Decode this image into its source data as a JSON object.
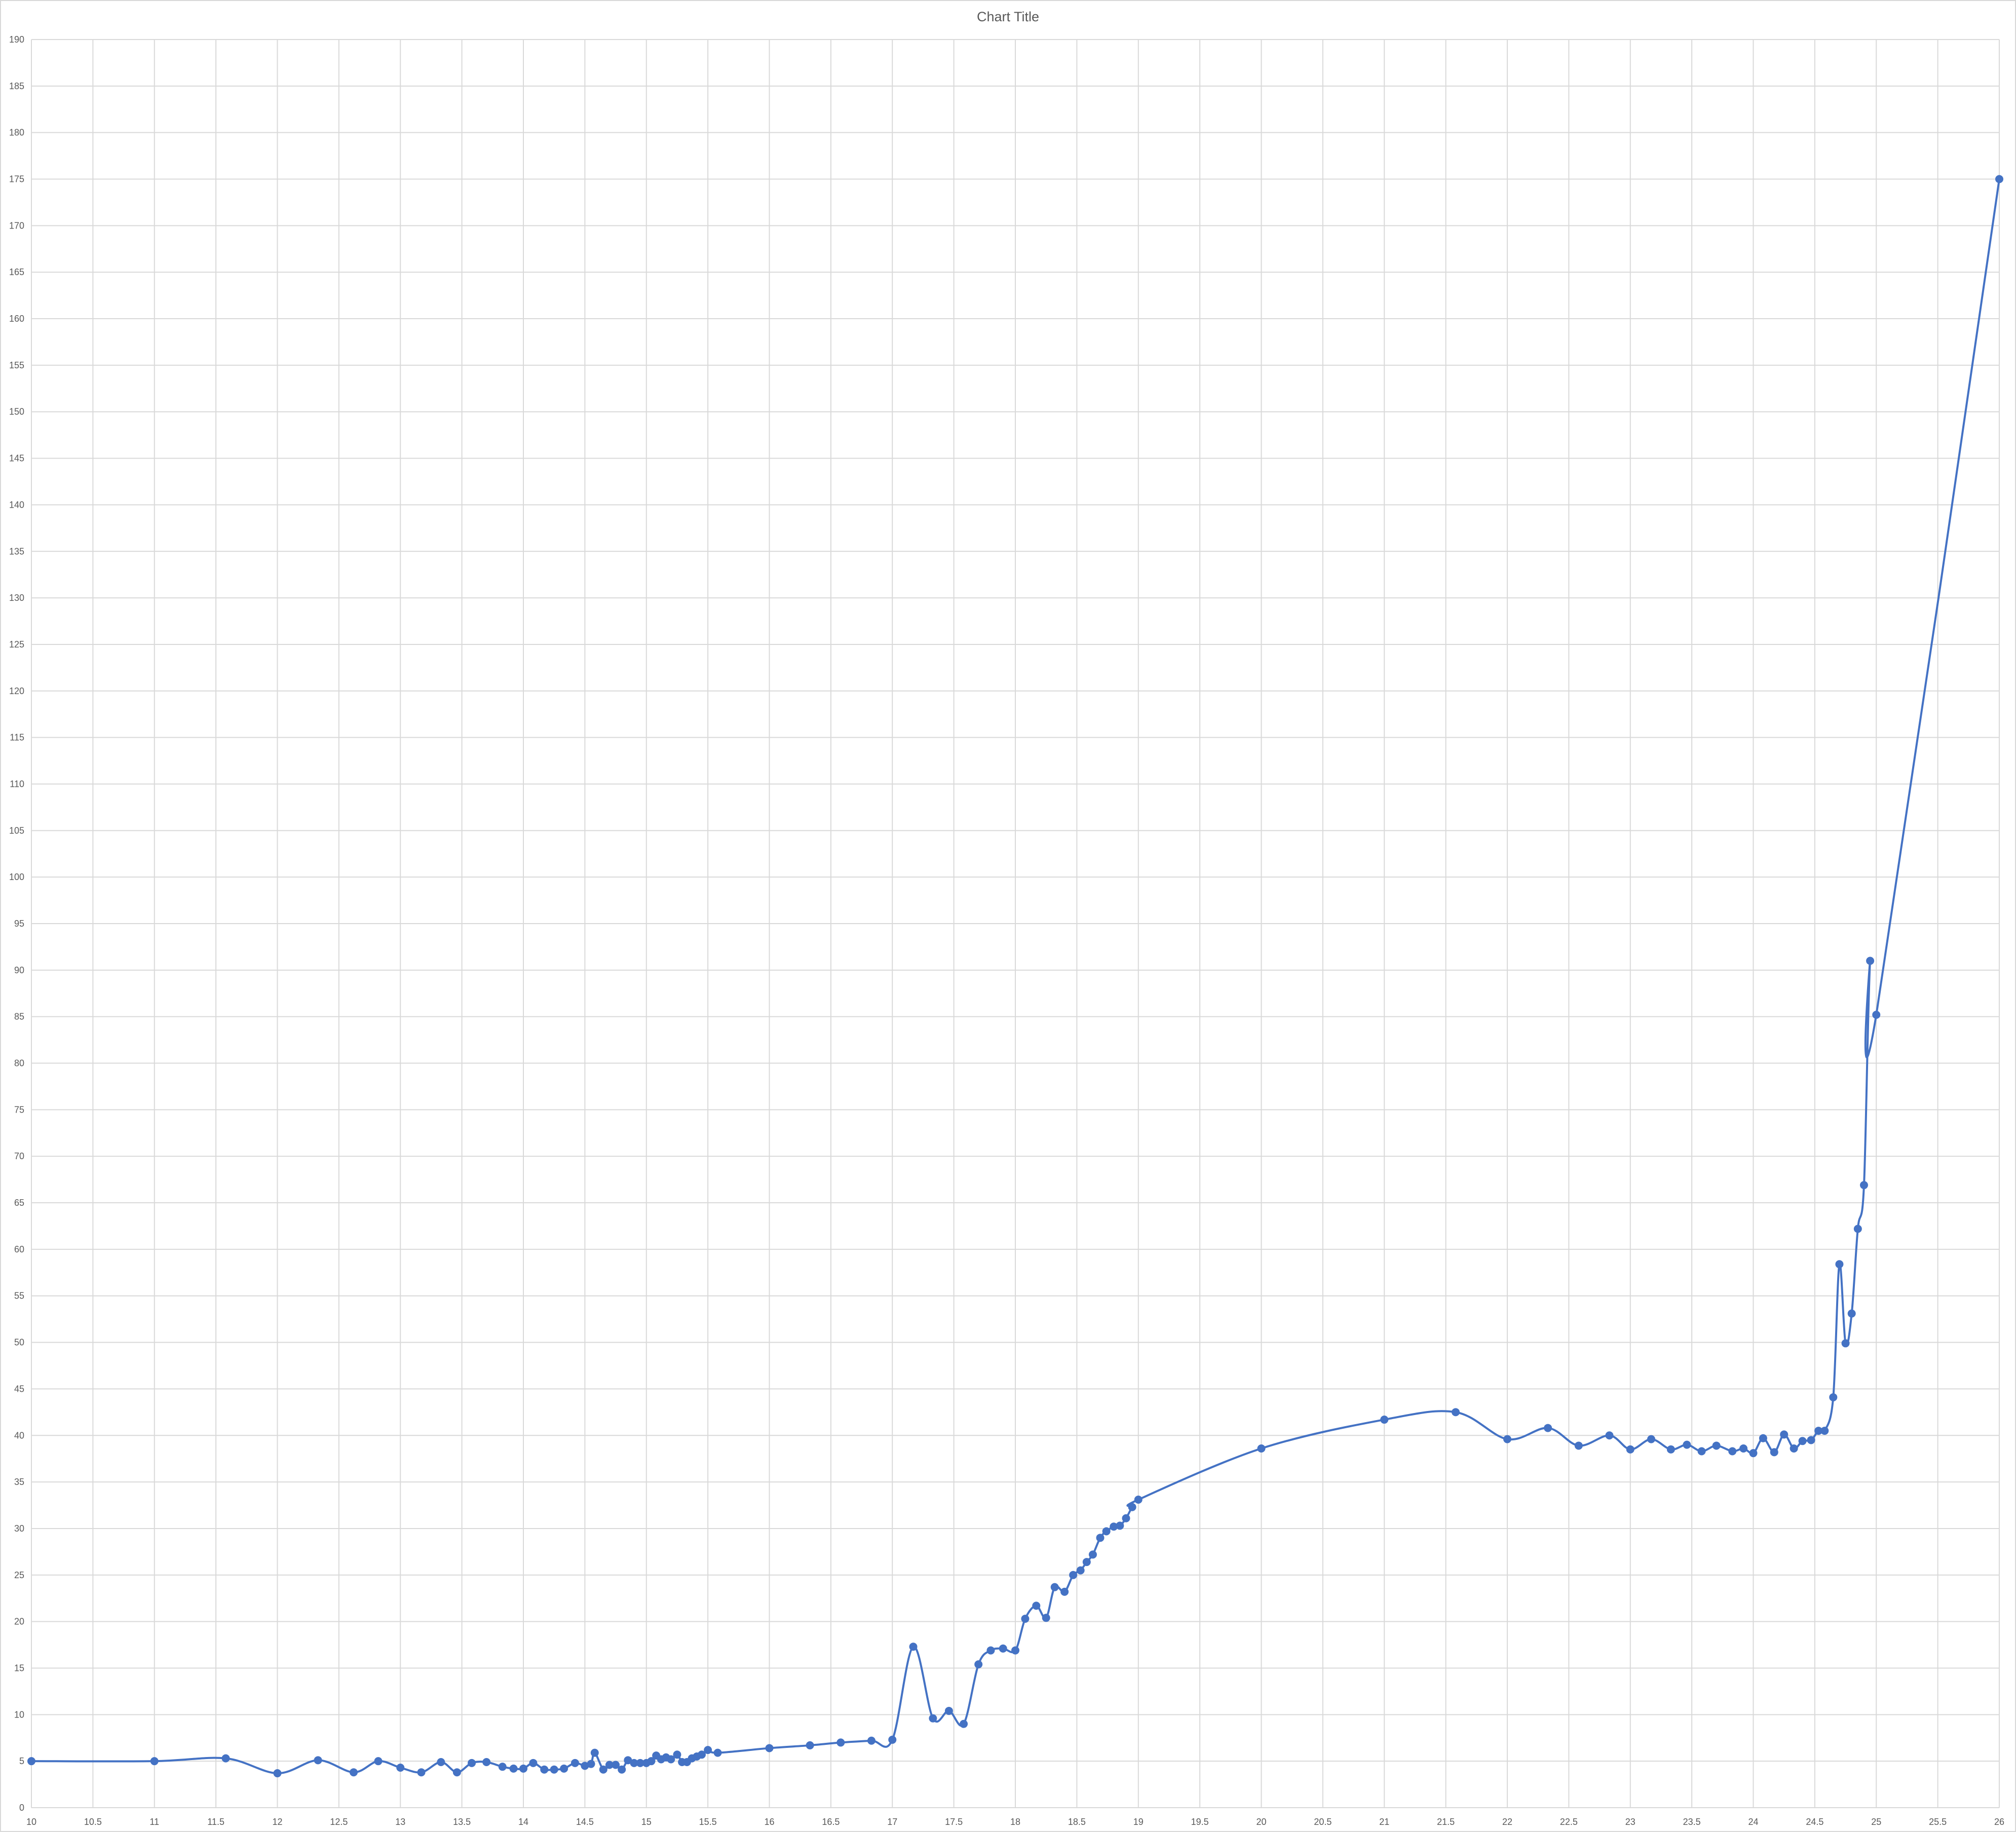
{
  "chart_data": {
    "type": "scatter",
    "title": "Chart Title",
    "xlabel": "",
    "ylabel": "",
    "xlim": [
      10,
      26
    ],
    "ylim": [
      0,
      190
    ],
    "xticks": [
      10,
      10.5,
      11,
      11.5,
      12,
      12.5,
      13,
      13.5,
      14,
      14.5,
      15,
      15.5,
      16,
      16.5,
      17,
      17.5,
      18,
      18.5,
      19,
      19.5,
      20,
      20.5,
      21,
      21.5,
      22,
      22.5,
      23,
      23.5,
      24,
      24.5,
      25,
      25.5,
      26
    ],
    "yticks": [
      0,
      5,
      10,
      15,
      20,
      25,
      30,
      35,
      40,
      45,
      50,
      55,
      60,
      65,
      70,
      75,
      80,
      85,
      90,
      95,
      100,
      105,
      110,
      115,
      120,
      125,
      130,
      135,
      140,
      145,
      150,
      155,
      160,
      165,
      170,
      175,
      180,
      185,
      190
    ],
    "grid": true,
    "legend": "none",
    "smooth": true,
    "series_color": "#4472c4",
    "series": [
      {
        "x": [
          10,
          11,
          11.58,
          12,
          12.33,
          12.62,
          12.82,
          13.0,
          13.17,
          13.33,
          13.46,
          13.58,
          13.7,
          13.83,
          13.92,
          14.0,
          14.08,
          14.17,
          14.25,
          14.33,
          14.42,
          14.5,
          14.55,
          14.58,
          14.65,
          14.7,
          14.75,
          14.8,
          14.85,
          14.9,
          14.95,
          15.0,
          15.04,
          15.08,
          15.12,
          15.16,
          15.2,
          15.25,
          15.29,
          15.33,
          15.37,
          15.41,
          15.45,
          15.5,
          15.58,
          16.0,
          16.33,
          16.58,
          16.83,
          17.0,
          17.17,
          17.33,
          17.46,
          17.58,
          17.7,
          17.8,
          17.9,
          18.0,
          18.08,
          18.17,
          18.25,
          18.32,
          18.4,
          18.47,
          18.53,
          18.58,
          18.63,
          18.69,
          18.74,
          18.8,
          18.85,
          18.9,
          18.95,
          19.0,
          20.0,
          21.0,
          21.58,
          22.0,
          22.33,
          22.58,
          22.83,
          23.0,
          23.17,
          23.33,
          23.46,
          23.58,
          23.7,
          23.83,
          23.92,
          24.0,
          24.08,
          24.17,
          24.25,
          24.33,
          24.4,
          24.47,
          24.53,
          24.58,
          24.65,
          24.7,
          24.75,
          24.8,
          24.85,
          24.9,
          24.95,
          25.0,
          26.0
        ],
        "y": [
          5,
          5,
          5.3,
          3.7,
          5.1,
          3.8,
          5.0,
          4.3,
          3.8,
          4.9,
          3.8,
          4.8,
          4.9,
          4.4,
          4.2,
          4.2,
          4.8,
          4.1,
          4.1,
          4.2,
          4.8,
          4.5,
          4.7,
          5.9,
          4.1,
          4.6,
          4.6,
          4.1,
          5.1,
          4.8,
          4.8,
          4.8,
          5.0,
          5.6,
          5.2,
          5.4,
          5.2,
          5.7,
          4.9,
          4.9,
          5.3,
          5.5,
          5.7,
          6.2,
          5.9,
          6.4,
          6.7,
          7.0,
          7.2,
          7.3,
          17.3,
          9.6,
          10.4,
          9.0,
          15.4,
          16.9,
          17.1,
          16.9,
          20.3,
          21.7,
          20.4,
          23.7,
          23.2,
          25.0,
          25.5,
          26.4,
          27.2,
          29.0,
          29.7,
          30.2,
          30.3,
          31.1,
          32.3,
          33.1,
          38.6,
          41.7,
          42.5,
          39.6,
          40.8,
          38.9,
          40.0,
          38.5,
          39.6,
          38.5,
          39.0,
          38.3,
          38.9,
          38.3,
          38.6,
          38.1,
          39.7,
          38.2,
          40.1,
          38.6,
          39.4,
          39.5,
          40.5,
          40.5,
          44.1,
          58.4,
          49.9,
          53.1,
          62.2,
          66.9,
          91.0,
          85.2,
          175.0
        ]
      }
    ]
  }
}
